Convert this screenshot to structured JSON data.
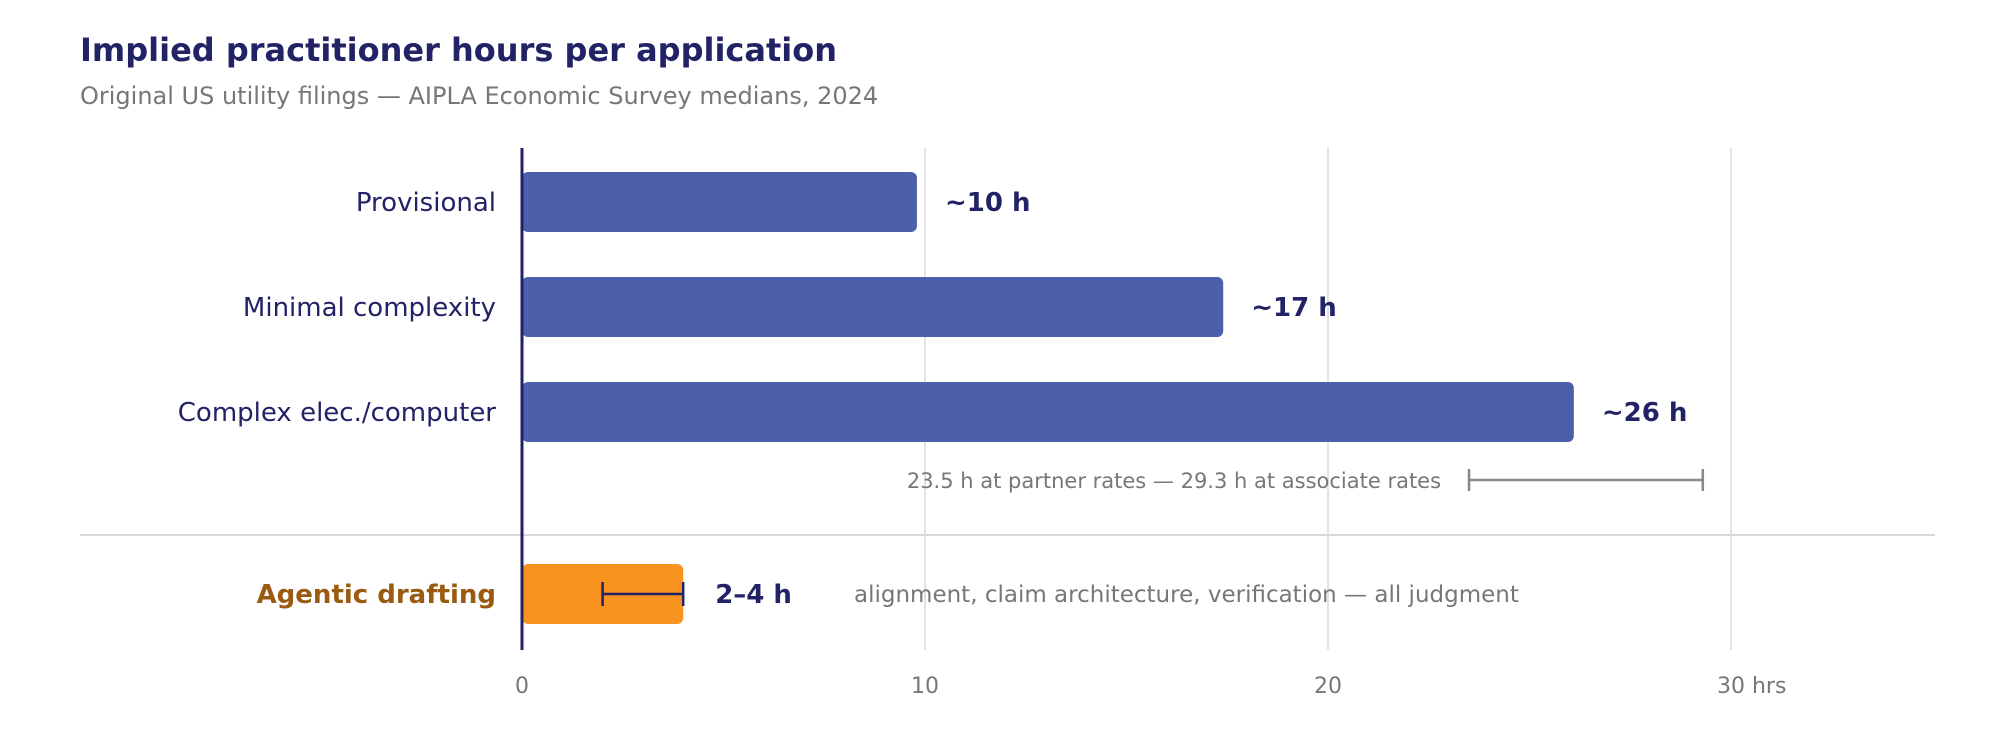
{
  "title": "Implied practitioner hours per application",
  "subtitle": "Original US utility filings — AIPLA Economic Survey medians, 2024",
  "colors": {
    "title": "#222266",
    "text_muted": "#777777",
    "bar_survey": "#4b5faa",
    "bar_agentic": "#f7931e",
    "label_agentic": "#9a5a10",
    "axis": "#222266",
    "grid": "#d9d9d9",
    "range_line": "#888888"
  },
  "chart_data": {
    "type": "bar",
    "orientation": "horizontal",
    "xlim": [
      0,
      35
    ],
    "x_ticks": [
      0,
      10,
      20,
      30
    ],
    "x_tick_labels": [
      "0",
      "10",
      "20",
      "30 hrs"
    ],
    "grid": true,
    "series": [
      {
        "categories": [
          "Provisional",
          "Minimal complexity",
          "Complex elec./computer"
        ],
        "values": [
          9.8,
          17.4,
          26.1
        ],
        "data_labels": [
          "~10 h",
          "~17 h",
          "~26 h"
        ]
      },
      {
        "categories": [
          "Agentic drafting"
        ],
        "values": [
          4
        ],
        "range": [
          2,
          4
        ],
        "data_labels": [
          "2–4 h"
        ]
      }
    ],
    "annotations": [
      {
        "text": "23.5 h at partner rates — 29.3 h at associate rates",
        "range": [
          23.5,
          29.3
        ]
      },
      {
        "text": "alignment, claim architecture, verification — all judgment"
      }
    ]
  }
}
